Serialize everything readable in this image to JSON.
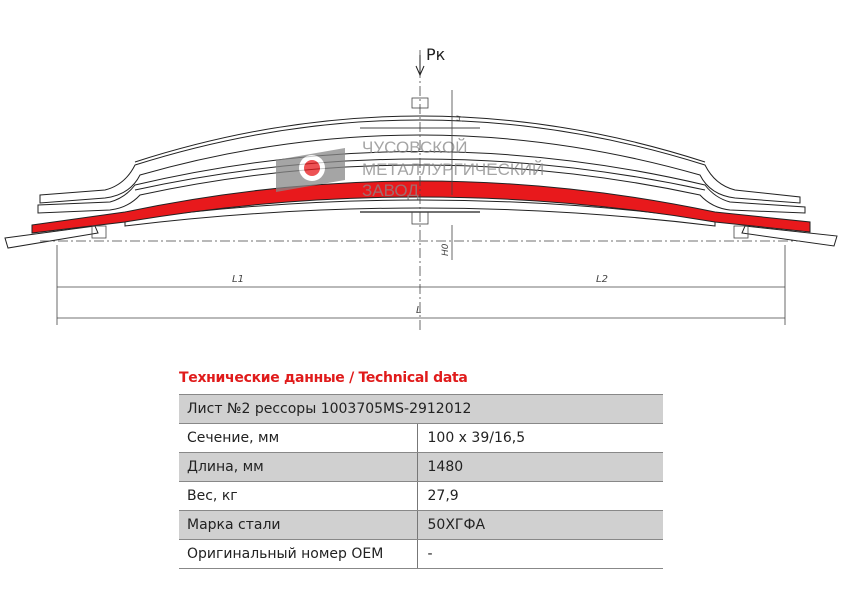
{
  "drawing": {
    "force_label": "Pк",
    "dim_l1": "L1",
    "dim_l2": "L2",
    "dim_l": "L",
    "dim_h": "H",
    "dim_h0": "H0",
    "highlight_color": "#e8191c",
    "logo_lines": [
      "ЧУСОВСКОЙ",
      "МЕТАЛЛУРГИЧЕСКИЙ",
      "ЗАВОД"
    ]
  },
  "section_title": "Технические данные / Technical data",
  "table": {
    "header": "Лист №2 рессоры 1003705MS-2912012",
    "rows": [
      {
        "label": "Сечение, мм",
        "value": "100 x 39/16,5"
      },
      {
        "label": "Длина, мм",
        "value": "1480"
      },
      {
        "label": "Вес, кг",
        "value": "27,9"
      },
      {
        "label": "Марка стали",
        "value": "50ХГФА"
      },
      {
        "label": "Оригинальный номер OEM",
        "value": "-"
      }
    ]
  }
}
